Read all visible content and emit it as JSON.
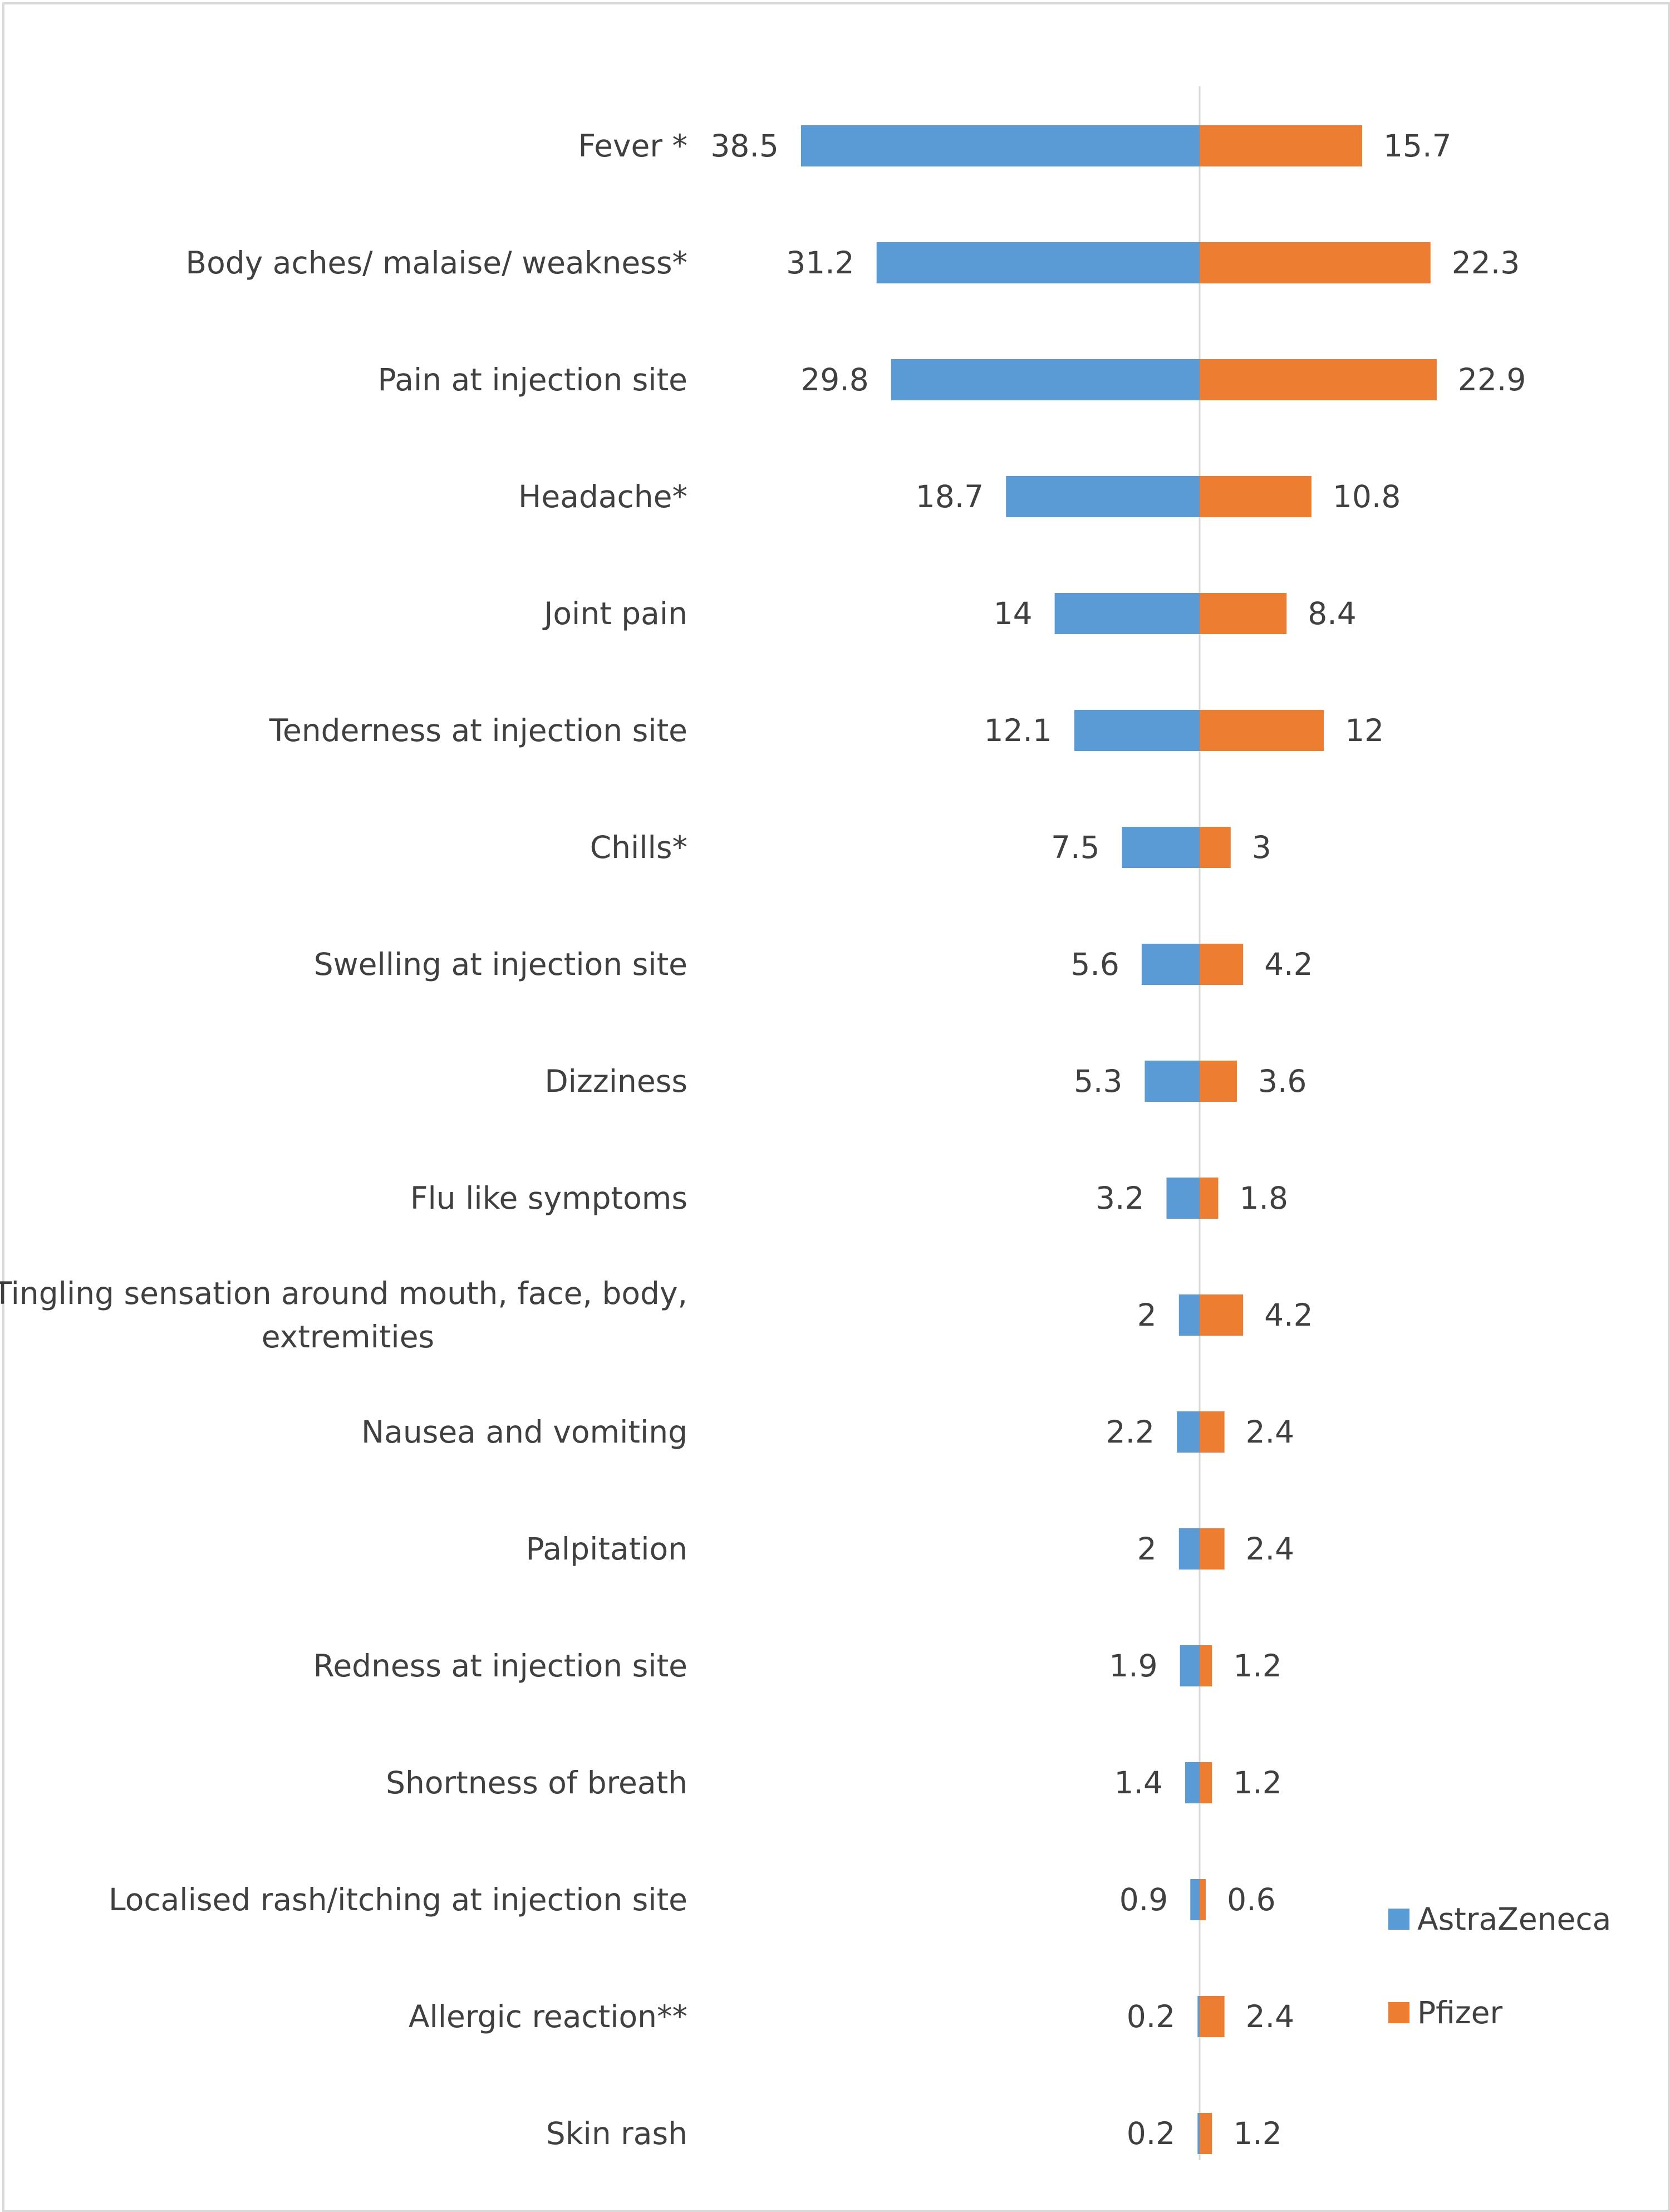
{
  "chart_data": {
    "type": "bar",
    "orientation": "horizontal-diverging",
    "title": "",
    "xlabel": "",
    "ylabel": "",
    "grid": false,
    "legend": "right",
    "categories": [
      "Fever *",
      "Body aches/ malaise/ weakness*",
      "Pain at injection site",
      "Headache*",
      "Joint pain",
      "Tenderness at injection site",
      "Chills*",
      "Swelling at injection site",
      "Dizziness",
      "Flu like symptoms",
      "Tingling sensation around mouth, face, body, extremities",
      "Nausea and vomiting",
      "Palpitation",
      "Redness at injection site",
      "Shortness of breath",
      "Localised rash/itching at injection site",
      "Allergic reaction**",
      "Skin rash"
    ],
    "label_lines": [
      [
        "Fever *"
      ],
      [
        "Body aches/ malaise/ weakness*"
      ],
      [
        "Pain at injection site"
      ],
      [
        "Headache*"
      ],
      [
        "Joint pain"
      ],
      [
        "Tenderness at injection site"
      ],
      [
        "Chills*"
      ],
      [
        "Swelling at injection site"
      ],
      [
        "Dizziness"
      ],
      [
        "Flu like symptoms"
      ],
      [
        "Tingling sensation around mouth, face, body,",
        "extremities"
      ],
      [
        "Nausea and vomiting"
      ],
      [
        "Palpitation"
      ],
      [
        "Redness at injection site"
      ],
      [
        "Shortness of breath"
      ],
      [
        "Localised rash/itching at injection site"
      ],
      [
        "Allergic reaction**"
      ],
      [
        "Skin rash"
      ]
    ],
    "series": [
      {
        "name": "AstraZeneca",
        "color": "#5b9bd5",
        "side": "left",
        "values": [
          38.5,
          31.2,
          29.8,
          18.7,
          14,
          12.1,
          7.5,
          5.6,
          5.3,
          3.2,
          2,
          2.2,
          2,
          1.9,
          1.4,
          0.9,
          0.2,
          0.2
        ],
        "labels": [
          "38.5",
          "31.2",
          "29.8",
          "18.7",
          "14",
          "12.1",
          "7.5",
          "5.6",
          "5.3",
          "3.2",
          "2",
          "2.2",
          "2",
          "1.9",
          "1.4",
          "0.9",
          "0.2",
          "0.2"
        ]
      },
      {
        "name": "Pfizer",
        "color": "#ed7d31",
        "side": "right",
        "values": [
          15.7,
          22.3,
          22.9,
          10.8,
          8.4,
          12,
          3,
          4.2,
          3.6,
          1.8,
          4.2,
          2.4,
          2.4,
          1.2,
          1.2,
          0.6,
          2.4,
          1.2
        ],
        "labels": [
          "15.7",
          "22.3",
          "22.9",
          "10.8",
          "8.4",
          "12",
          "3",
          "4.2",
          "3.6",
          "1.8",
          "4.2",
          "2.4",
          "2.4",
          "1.2",
          "1.2",
          "0.6",
          "2.4",
          "1.2"
        ]
      }
    ],
    "axis_color": "#d9d9d9",
    "text_color": "#404040"
  }
}
